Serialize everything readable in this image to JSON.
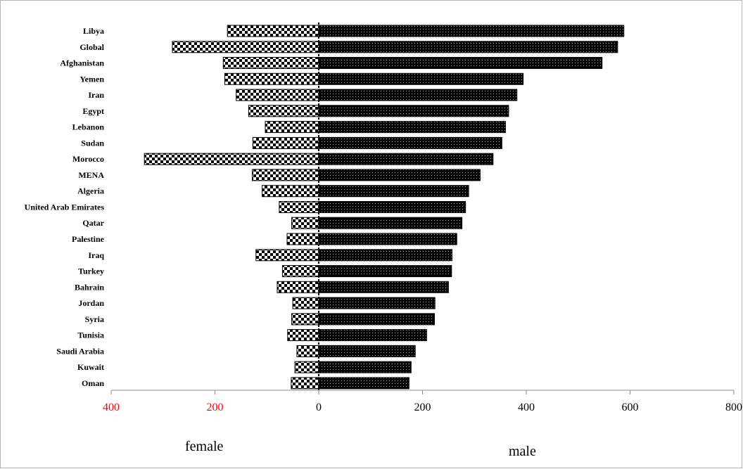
{
  "chart_data": {
    "type": "bar",
    "orientation": "horizontal",
    "diverging": true,
    "categories": [
      "Libya",
      "Global",
      "Afghanistan",
      "Yemen",
      "Iran",
      "Egypt",
      "Lebanon",
      "Sudan",
      "Morocco",
      "MENA",
      "Algeria",
      "United Arab Emirates",
      "Qatar",
      "Palestine",
      "Iraq",
      "Turkey",
      "Bahrain",
      "Jordan",
      "Syria",
      "Tunisia",
      "Saudi Arabia",
      "Kuwait",
      "Oman"
    ],
    "series": [
      {
        "name": "female",
        "values": [
          176,
          282,
          184,
          181,
          159,
          135,
          103,
          127,
          336,
          128,
          109,
          76,
          52,
          61,
          121,
          70,
          80,
          50,
          52,
          60,
          42,
          46,
          53
        ],
        "pattern": "checkerboard"
      },
      {
        "name": "male",
        "values": [
          588,
          576,
          546,
          394,
          382,
          366,
          360,
          353,
          336,
          311,
          289,
          283,
          276,
          266,
          257,
          256,
          250,
          224,
          223,
          208,
          186,
          178,
          174
        ],
        "pattern": "dotted-dark"
      }
    ],
    "xlim": [
      -400,
      800
    ],
    "xticks": [
      -400,
      -200,
      0,
      200,
      400,
      600,
      800
    ],
    "xtick_labels": [
      "400",
      "200",
      "0",
      "200",
      "400",
      "600",
      "800"
    ],
    "negative_tick_color": "#ff0000",
    "positive_tick_color": "#000000",
    "female_label": "female",
    "male_label": "male",
    "title": "",
    "xlabel": "",
    "ylabel": ""
  }
}
